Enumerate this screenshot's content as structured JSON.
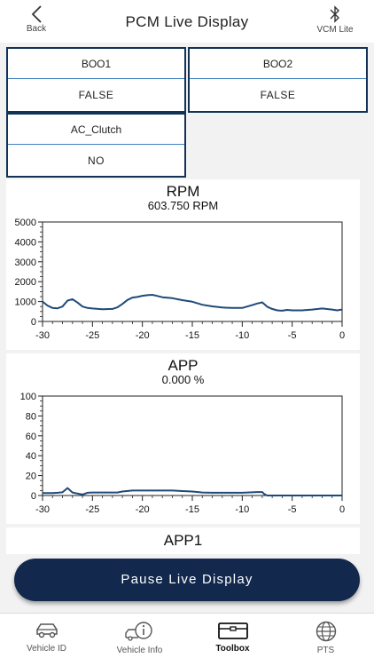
{
  "header": {
    "title": "PCM Live Display",
    "back_label": "Back",
    "vcm_label": "VCM Lite"
  },
  "tiles": [
    {
      "name": "BOO1",
      "value": "FALSE"
    },
    {
      "name": "BOO2",
      "value": "FALSE"
    },
    {
      "name": "AC_Clutch",
      "value": "NO"
    }
  ],
  "charts": {
    "rpm": {
      "title": "RPM",
      "value": "603.750 RPM"
    },
    "app": {
      "title": "APP",
      "value": "0.000 %"
    },
    "app1": {
      "title": "APP1"
    }
  },
  "chart_data": [
    {
      "type": "line",
      "title": "RPM",
      "subtitle": "603.750 RPM",
      "xlim": [
        -30,
        0
      ],
      "ylim": [
        0,
        5000
      ],
      "x_ticks": [
        "-30",
        "-25",
        "-20",
        "-15",
        "-10",
        "-5",
        "0"
      ],
      "y_ticks": [
        "0",
        "1000",
        "2000",
        "3000",
        "4000",
        "5000"
      ],
      "color": "#1f4a78",
      "series": [
        {
          "x": [
            -30,
            -29.5,
            -29,
            -28.5,
            -28,
            -27.5,
            -27,
            -26.5,
            -26,
            -25.5,
            -25,
            -24,
            -23,
            -22.5,
            -22,
            -21.5,
            -21,
            -20.5,
            -20,
            -19.5,
            -19,
            -18.5,
            -18,
            -17,
            -16,
            -15,
            -14,
            -13,
            -12,
            -11,
            -10,
            -9,
            -8.5,
            -8,
            -7.5,
            -7,
            -6.5,
            -6,
            -5.5,
            -5,
            -4,
            -3,
            -2,
            -1,
            -0.5,
            0
          ],
          "y": [
            1000,
            800,
            680,
            660,
            750,
            1050,
            1120,
            950,
            750,
            680,
            650,
            610,
            630,
            710,
            880,
            1080,
            1200,
            1230,
            1290,
            1320,
            1340,
            1280,
            1220,
            1170,
            1070,
            990,
            840,
            760,
            700,
            680,
            680,
            820,
            900,
            960,
            740,
            630,
            560,
            540,
            580,
            560,
            560,
            600,
            650,
            600,
            560,
            600
          ]
        }
      ]
    },
    {
      "type": "line",
      "title": "APP",
      "subtitle": "0.000 %",
      "xlim": [
        -30,
        0
      ],
      "ylim": [
        0,
        100
      ],
      "x_ticks": [
        "-30",
        "-25",
        "-20",
        "-15",
        "-10",
        "-5",
        "0"
      ],
      "y_ticks": [
        "0",
        "20",
        "40",
        "60",
        "80",
        "100"
      ],
      "color": "#1f4a78",
      "series": [
        {
          "x": [
            -30,
            -29,
            -28.5,
            -28,
            -27.5,
            -27,
            -26.5,
            -26,
            -25.5,
            -25,
            -23.5,
            -22.5,
            -22,
            -21,
            -20,
            -18,
            -17,
            -16,
            -15,
            -14,
            -13,
            -12,
            -11,
            -10,
            -9,
            -8.5,
            -8,
            -7.8,
            -7.5,
            -5,
            -3,
            -1,
            0
          ],
          "y": [
            2.5,
            2.5,
            2.8,
            3.2,
            7.5,
            3,
            2,
            1,
            2.8,
            3,
            3,
            3,
            4,
            5,
            5,
            5,
            5,
            4.5,
            4,
            3,
            2.8,
            2.8,
            2.8,
            2.8,
            3.2,
            3.5,
            3.5,
            1.5,
            0,
            0,
            0,
            0,
            0
          ]
        }
      ]
    }
  ],
  "pause_button": {
    "label": "Pause Live Display"
  },
  "nav": {
    "items": [
      {
        "label": "Vehicle ID",
        "icon": "car-icon"
      },
      {
        "label": "Vehicle Info",
        "icon": "car-info-icon"
      },
      {
        "label": "Toolbox",
        "icon": "toolbox-icon"
      },
      {
        "label": "PTS",
        "icon": "globe-icon"
      }
    ],
    "active": "Toolbox"
  }
}
